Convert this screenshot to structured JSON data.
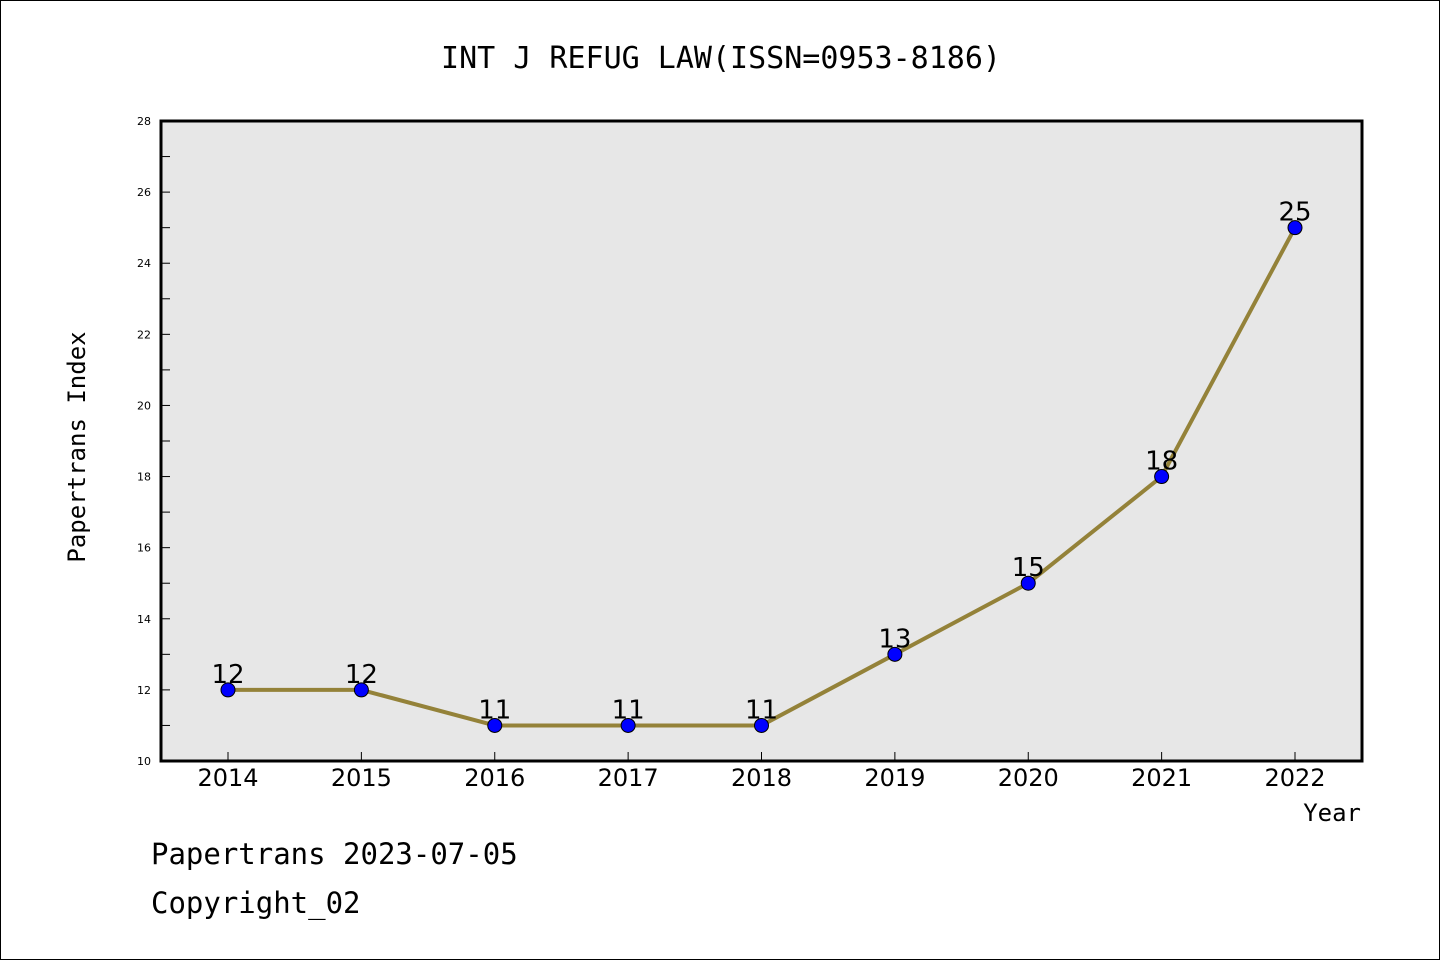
{
  "chart_data": {
    "type": "line",
    "title": "INT J REFUG LAW(ISSN=0953-8186)",
    "xlabel": "Year",
    "ylabel": "Papertrans Index",
    "categories": [
      "2014",
      "2015",
      "2016",
      "2017",
      "2018",
      "2019",
      "2020",
      "2021",
      "2022"
    ],
    "series": [
      {
        "values": [
          12,
          12,
          11,
          11,
          11,
          13,
          15,
          18,
          25
        ]
      }
    ],
    "data_labels": [
      "12",
      "12",
      "11",
      "11",
      "11",
      "13",
      "15",
      "18",
      "25"
    ],
    "ylim": [
      10,
      28
    ],
    "yticks": [
      10,
      12,
      14,
      16,
      18,
      20,
      22,
      24,
      26,
      28
    ],
    "ytick_labels": [
      "10",
      "12",
      "14",
      "16",
      "18",
      "20",
      "22",
      "24",
      "26",
      "28"
    ],
    "grid": false,
    "colors": {
      "line": "#948239",
      "marker": "#0000ff",
      "plot_background": "#e7e7e7"
    }
  },
  "footer": {
    "line1": "Papertrans 2023-07-05",
    "line2": "Copyright_02"
  }
}
